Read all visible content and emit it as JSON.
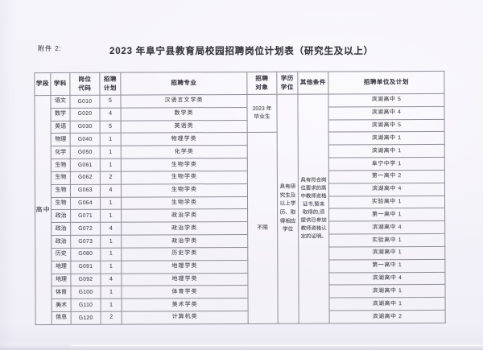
{
  "page": {
    "attachment_label": "附件 2:",
    "title": "2023 年阜宁县教育局校园招聘岗位计划表（研究生及以上）"
  },
  "table": {
    "headers": [
      "学段",
      "学科",
      "岗位\n代码",
      "招聘\n计划",
      "招聘专业",
      "招聘\n对象",
      "学历\n学位",
      "其他条件",
      "招聘单位及计划"
    ],
    "stage": "高中",
    "target_first": "2023 年\n毕业生",
    "target_first_rowspan": 3,
    "target_rest": "不限",
    "degree": "具有研究生及以上学历、取得相应学位",
    "other_conditions": "具有符合岗位要求的高中教师资格证书,暂未取得的,须提供已参加教师资格认定的证明。",
    "rows": [
      {
        "subject": "语文",
        "code": "G010",
        "plan": "5",
        "major": "汉语言文学类",
        "unit": "滨湖高中 5"
      },
      {
        "subject": "数学",
        "code": "G020",
        "plan": "4",
        "major": "数学类",
        "unit": "滨湖高中 4"
      },
      {
        "subject": "英语",
        "code": "G030",
        "plan": "5",
        "major": "英语类",
        "unit": "滨湖高中 5"
      },
      {
        "subject": "物理",
        "code": "G040",
        "plan": "1",
        "major": "物理学类",
        "unit": "滨湖高中 1"
      },
      {
        "subject": "化学",
        "code": "G050",
        "plan": "1",
        "major": "化学类",
        "unit": "滨湖高中 1"
      },
      {
        "subject": "生物",
        "code": "G061",
        "plan": "1",
        "major": "生物学类",
        "unit": "阜宁中学 1"
      },
      {
        "subject": "生物",
        "code": "G062",
        "plan": "2",
        "major": "生物学类",
        "unit": "第一高中 2"
      },
      {
        "subject": "生物",
        "code": "G063",
        "plan": "4",
        "major": "生物学类",
        "unit": "滨湖高中 4"
      },
      {
        "subject": "生物",
        "code": "G064",
        "plan": "1",
        "major": "生物学类",
        "unit": "实验高中 1"
      },
      {
        "subject": "政治",
        "code": "G071",
        "plan": "1",
        "major": "政治学类",
        "unit": "第一高中 1"
      },
      {
        "subject": "政治",
        "code": "G072",
        "plan": "4",
        "major": "政治学类",
        "unit": "滨湖高中 4"
      },
      {
        "subject": "政治",
        "code": "G073",
        "plan": "1",
        "major": "政治学类",
        "unit": "实验高中 1"
      },
      {
        "subject": "历史",
        "code": "G080",
        "plan": "1",
        "major": "历史学类",
        "unit": "滨湖高中 1"
      },
      {
        "subject": "地理",
        "code": "G091",
        "plan": "1",
        "major": "地理学类",
        "unit": "第一高中 1"
      },
      {
        "subject": "地理",
        "code": "G092",
        "plan": "4",
        "major": "地理学类",
        "unit": "滨湖高中 4"
      },
      {
        "subject": "体育",
        "code": "G100",
        "plan": "1",
        "major": "体育学类",
        "unit": "滨湖高中 1"
      },
      {
        "subject": "美术",
        "code": "G110",
        "plan": "1",
        "major": "美术学类",
        "unit": "滨湖高中 1"
      },
      {
        "subject": "信息",
        "code": "G120",
        "plan": "2",
        "major": "计算机类",
        "unit": "滨湖高中 2"
      }
    ]
  }
}
